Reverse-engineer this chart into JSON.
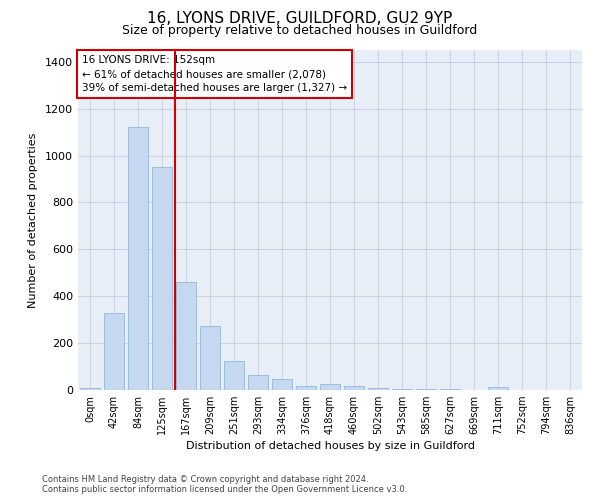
{
  "title1": "16, LYONS DRIVE, GUILDFORD, GU2 9YP",
  "title2": "Size of property relative to detached houses in Guildford",
  "xlabel": "Distribution of detached houses by size in Guildford",
  "ylabel": "Number of detached properties",
  "categories": [
    "0sqm",
    "42sqm",
    "84sqm",
    "125sqm",
    "167sqm",
    "209sqm",
    "251sqm",
    "293sqm",
    "334sqm",
    "376sqm",
    "418sqm",
    "460sqm",
    "502sqm",
    "543sqm",
    "585sqm",
    "627sqm",
    "669sqm",
    "711sqm",
    "752sqm",
    "794sqm",
    "836sqm"
  ],
  "values": [
    8,
    328,
    1120,
    950,
    460,
    272,
    125,
    62,
    46,
    18,
    24,
    18,
    10,
    5,
    4,
    3,
    0,
    14,
    0,
    0,
    0
  ],
  "bar_color": "#c5d8f0",
  "bar_edge_color": "#89afd4",
  "property_line_index": 3.56,
  "annotation_line1": "16 LYONS DRIVE: 152sqm",
  "annotation_line2": "← 61% of detached houses are smaller (2,078)",
  "annotation_line3": "39% of semi-detached houses are larger (1,327) →",
  "annotation_box_facecolor": "#ffffff",
  "annotation_box_edgecolor": "#cc0000",
  "property_line_color": "#cc0000",
  "ylim_max": 1450,
  "yticks": [
    0,
    200,
    400,
    600,
    800,
    1000,
    1200,
    1400
  ],
  "bg_color": "#e8eef8",
  "footer_line1": "Contains HM Land Registry data © Crown copyright and database right 2024.",
  "footer_line2": "Contains public sector information licensed under the Open Government Licence v3.0."
}
